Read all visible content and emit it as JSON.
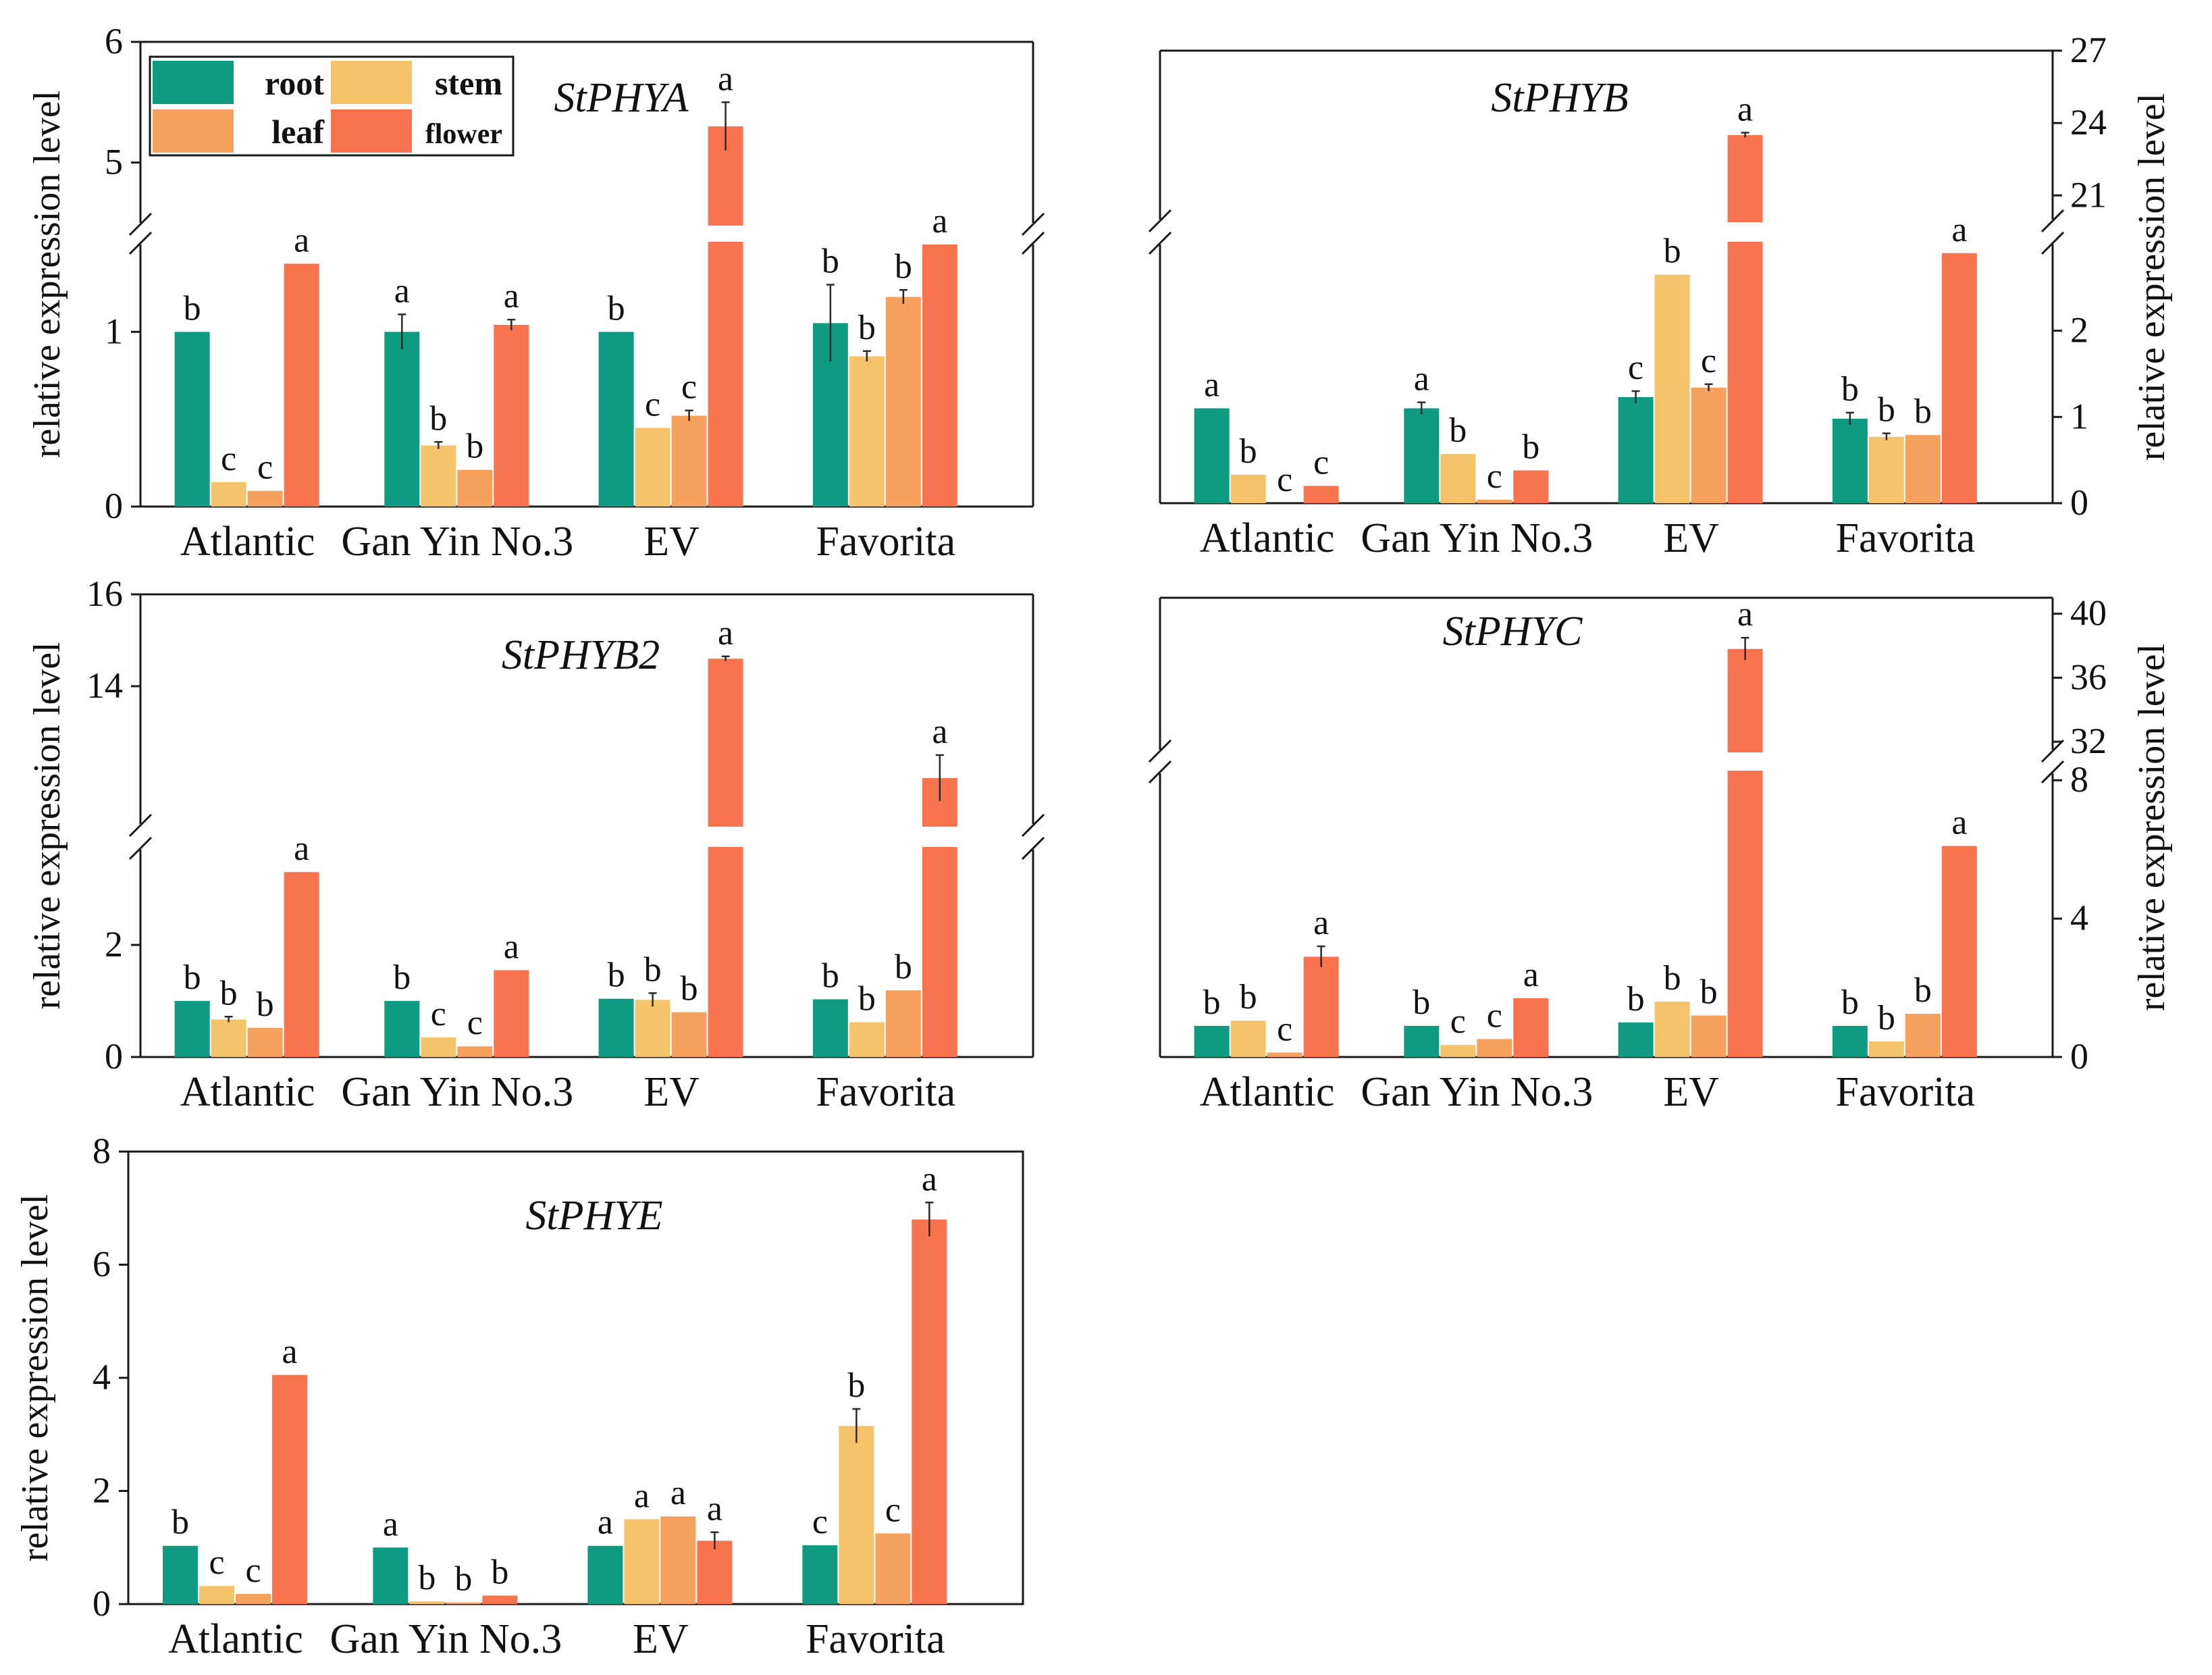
{
  "colors": {
    "root": "#0f9a82",
    "stem": "#f5c46a",
    "leaf": "#f7a15e",
    "flower": "#f7744f",
    "axis": "#1a1a1a"
  },
  "legend": {
    "entries": [
      {
        "key": "root",
        "label": "root"
      },
      {
        "key": "stem",
        "label": "stem"
      },
      {
        "key": "leaf",
        "label": "leaf"
      },
      {
        "key": "flower",
        "label": "flower"
      }
    ]
  },
  "chart_data": [
    {
      "type": "bar",
      "title": "StPHYA",
      "ylabel": "relative expression level",
      "y_axis_side": "left",
      "categories": [
        "Atlantic",
        "Gan Yin No.3",
        "EV",
        "Favorita"
      ],
      "series": [
        {
          "name": "root",
          "values": [
            1.0,
            1.0,
            1.0,
            1.05
          ],
          "errors": [
            0.0,
            0.1,
            0.0,
            0.22
          ],
          "letters": [
            "b",
            "a",
            "b",
            "b"
          ]
        },
        {
          "name": "stem",
          "values": [
            0.14,
            0.35,
            0.45,
            0.86
          ],
          "errors": [
            0.0,
            0.02,
            0.0,
            0.03
          ],
          "letters": [
            "c",
            "b",
            "c",
            "b"
          ]
        },
        {
          "name": "leaf",
          "values": [
            0.09,
            0.21,
            0.52,
            1.2
          ],
          "errors": [
            0.0,
            0.0,
            0.03,
            0.04
          ],
          "letters": [
            "c",
            "b",
            "c",
            "b"
          ]
        },
        {
          "name": "flower",
          "values": [
            1.39,
            1.04,
            5.3,
            1.5
          ],
          "errors": [
            0.0,
            0.03,
            0.2,
            0.0
          ],
          "letters": [
            "a",
            "a",
            "a",
            "a"
          ]
        }
      ],
      "axis_break": {
        "lower": [
          0,
          1.5
        ],
        "upper": [
          4.5,
          6
        ]
      },
      "yticks": [
        0,
        1,
        5,
        6
      ],
      "legend_location": "top-left"
    },
    {
      "type": "bar",
      "title": "StPHYB",
      "ylabel": "relative expression level",
      "y_axis_side": "right",
      "categories": [
        "Atlantic",
        "Gan Yin No.3",
        "EV",
        "Favorita"
      ],
      "series": [
        {
          "name": "root",
          "values": [
            1.1,
            1.1,
            1.23,
            0.98
          ],
          "errors": [
            0.0,
            0.07,
            0.07,
            0.07
          ],
          "letters": [
            "a",
            "a",
            "c",
            "b"
          ]
        },
        {
          "name": "stem",
          "values": [
            0.33,
            0.57,
            2.65,
            0.77
          ],
          "errors": [
            0.0,
            0.0,
            0.0,
            0.04
          ],
          "letters": [
            "b",
            "b",
            "b",
            "b"
          ]
        },
        {
          "name": "leaf",
          "values": [
            0.0,
            0.04,
            1.34,
            0.79
          ],
          "errors": [
            0.0,
            0.0,
            0.04,
            0.0
          ],
          "letters": [
            "c",
            "c",
            "c",
            "b"
          ]
        },
        {
          "name": "flower",
          "values": [
            0.2,
            0.38,
            23.5,
            2.9
          ],
          "errors": [
            0.0,
            0.0,
            0.1,
            0.0
          ],
          "letters": [
            "c",
            "b",
            "a",
            "a"
          ]
        }
      ],
      "axis_break": {
        "lower": [
          0,
          3.0
        ],
        "upper": [
          20,
          27
        ]
      },
      "yticks": [
        0,
        1,
        2,
        21,
        24,
        27
      ]
    },
    {
      "type": "bar",
      "title": "StPHYB2",
      "ylabel": "relative expression level",
      "y_axis_side": "left",
      "categories": [
        "Atlantic",
        "Gan Yin No.3",
        "EV",
        "Favorita"
      ],
      "series": [
        {
          "name": "root",
          "values": [
            1.0,
            1.0,
            1.04,
            1.03
          ],
          "errors": [
            0.0,
            0.0,
            0.0,
            0.0
          ],
          "letters": [
            "b",
            "b",
            "b",
            "b"
          ]
        },
        {
          "name": "stem",
          "values": [
            0.67,
            0.35,
            1.02,
            0.62
          ],
          "errors": [
            0.05,
            0.0,
            0.12,
            0.0
          ],
          "letters": [
            "b",
            "c",
            "b",
            "b"
          ]
        },
        {
          "name": "leaf",
          "values": [
            0.52,
            0.19,
            0.8,
            1.19
          ],
          "errors": [
            0.0,
            0.0,
            0.0,
            0.0
          ],
          "letters": [
            "b",
            "c",
            "b",
            "b"
          ]
        },
        {
          "name": "flower",
          "values": [
            3.3,
            1.55,
            14.6,
            12.0
          ],
          "errors": [
            0.0,
            0.0,
            0.05,
            0.5
          ],
          "letters": [
            "a",
            "a",
            "a",
            "a"
          ]
        }
      ],
      "axis_break": {
        "lower": [
          0,
          3.7
        ],
        "upper": [
          11.0,
          16
        ]
      },
      "yticks": [
        0,
        2,
        14,
        16
      ]
    },
    {
      "type": "bar",
      "title": "StPHYC",
      "ylabel": "relative expression level",
      "y_axis_side": "right",
      "categories": [
        "Atlantic",
        "Gan Yin No.3",
        "EV",
        "Favorita"
      ],
      "series": [
        {
          "name": "root",
          "values": [
            0.9,
            0.9,
            1.0,
            0.9
          ],
          "errors": [
            0.0,
            0.0,
            0.0,
            0.0
          ],
          "letters": [
            "b",
            "b",
            "b",
            "b"
          ]
        },
        {
          "name": "stem",
          "values": [
            1.05,
            0.35,
            1.6,
            0.45
          ],
          "errors": [
            0.0,
            0.0,
            0.0,
            0.0
          ],
          "letters": [
            "b",
            "c",
            "b",
            "b"
          ]
        },
        {
          "name": "leaf",
          "values": [
            0.13,
            0.52,
            1.2,
            1.25
          ],
          "errors": [
            0.0,
            0.0,
            0.0,
            0.0
          ],
          "letters": [
            "c",
            "c",
            "b",
            "b"
          ]
        },
        {
          "name": "flower",
          "values": [
            2.9,
            1.7,
            37.8,
            6.1
          ],
          "errors": [
            0.3,
            0.0,
            0.7,
            0.0
          ],
          "letters": [
            "a",
            "a",
            "a",
            "a"
          ]
        }
      ],
      "axis_break": {
        "lower": [
          0,
          8.2
        ],
        "upper": [
          31.5,
          41
        ]
      },
      "yticks": [
        0,
        4,
        8,
        32,
        36,
        40
      ]
    },
    {
      "type": "bar",
      "title": "StPHYE",
      "ylabel": "relative expression level",
      "y_axis_side": "left",
      "categories": [
        "Atlantic",
        "Gan Yin No.3",
        "EV",
        "Favorita"
      ],
      "series": [
        {
          "name": "root",
          "values": [
            1.03,
            1.0,
            1.03,
            1.04
          ],
          "errors": [
            0.0,
            0.0,
            0.0,
            0.0
          ],
          "letters": [
            "b",
            "a",
            "a",
            "c"
          ]
        },
        {
          "name": "stem",
          "values": [
            0.32,
            0.05,
            1.5,
            3.15
          ],
          "errors": [
            0.0,
            0.0,
            0.0,
            0.3
          ],
          "letters": [
            "c",
            "b",
            "a",
            "b"
          ]
        },
        {
          "name": "leaf",
          "values": [
            0.18,
            0.03,
            1.55,
            1.25
          ],
          "errors": [
            0.0,
            0.0,
            0.0,
            0.0
          ],
          "letters": [
            "c",
            "b",
            "a",
            "c"
          ]
        },
        {
          "name": "flower",
          "values": [
            4.05,
            0.15,
            1.12,
            6.8
          ],
          "errors": [
            0.0,
            0.0,
            0.15,
            0.3
          ],
          "letters": [
            "a",
            "b",
            "a",
            "a"
          ]
        }
      ],
      "axis_break": null,
      "ylim": [
        0,
        8
      ],
      "yticks": [
        0,
        2,
        4,
        6,
        8
      ]
    }
  ]
}
